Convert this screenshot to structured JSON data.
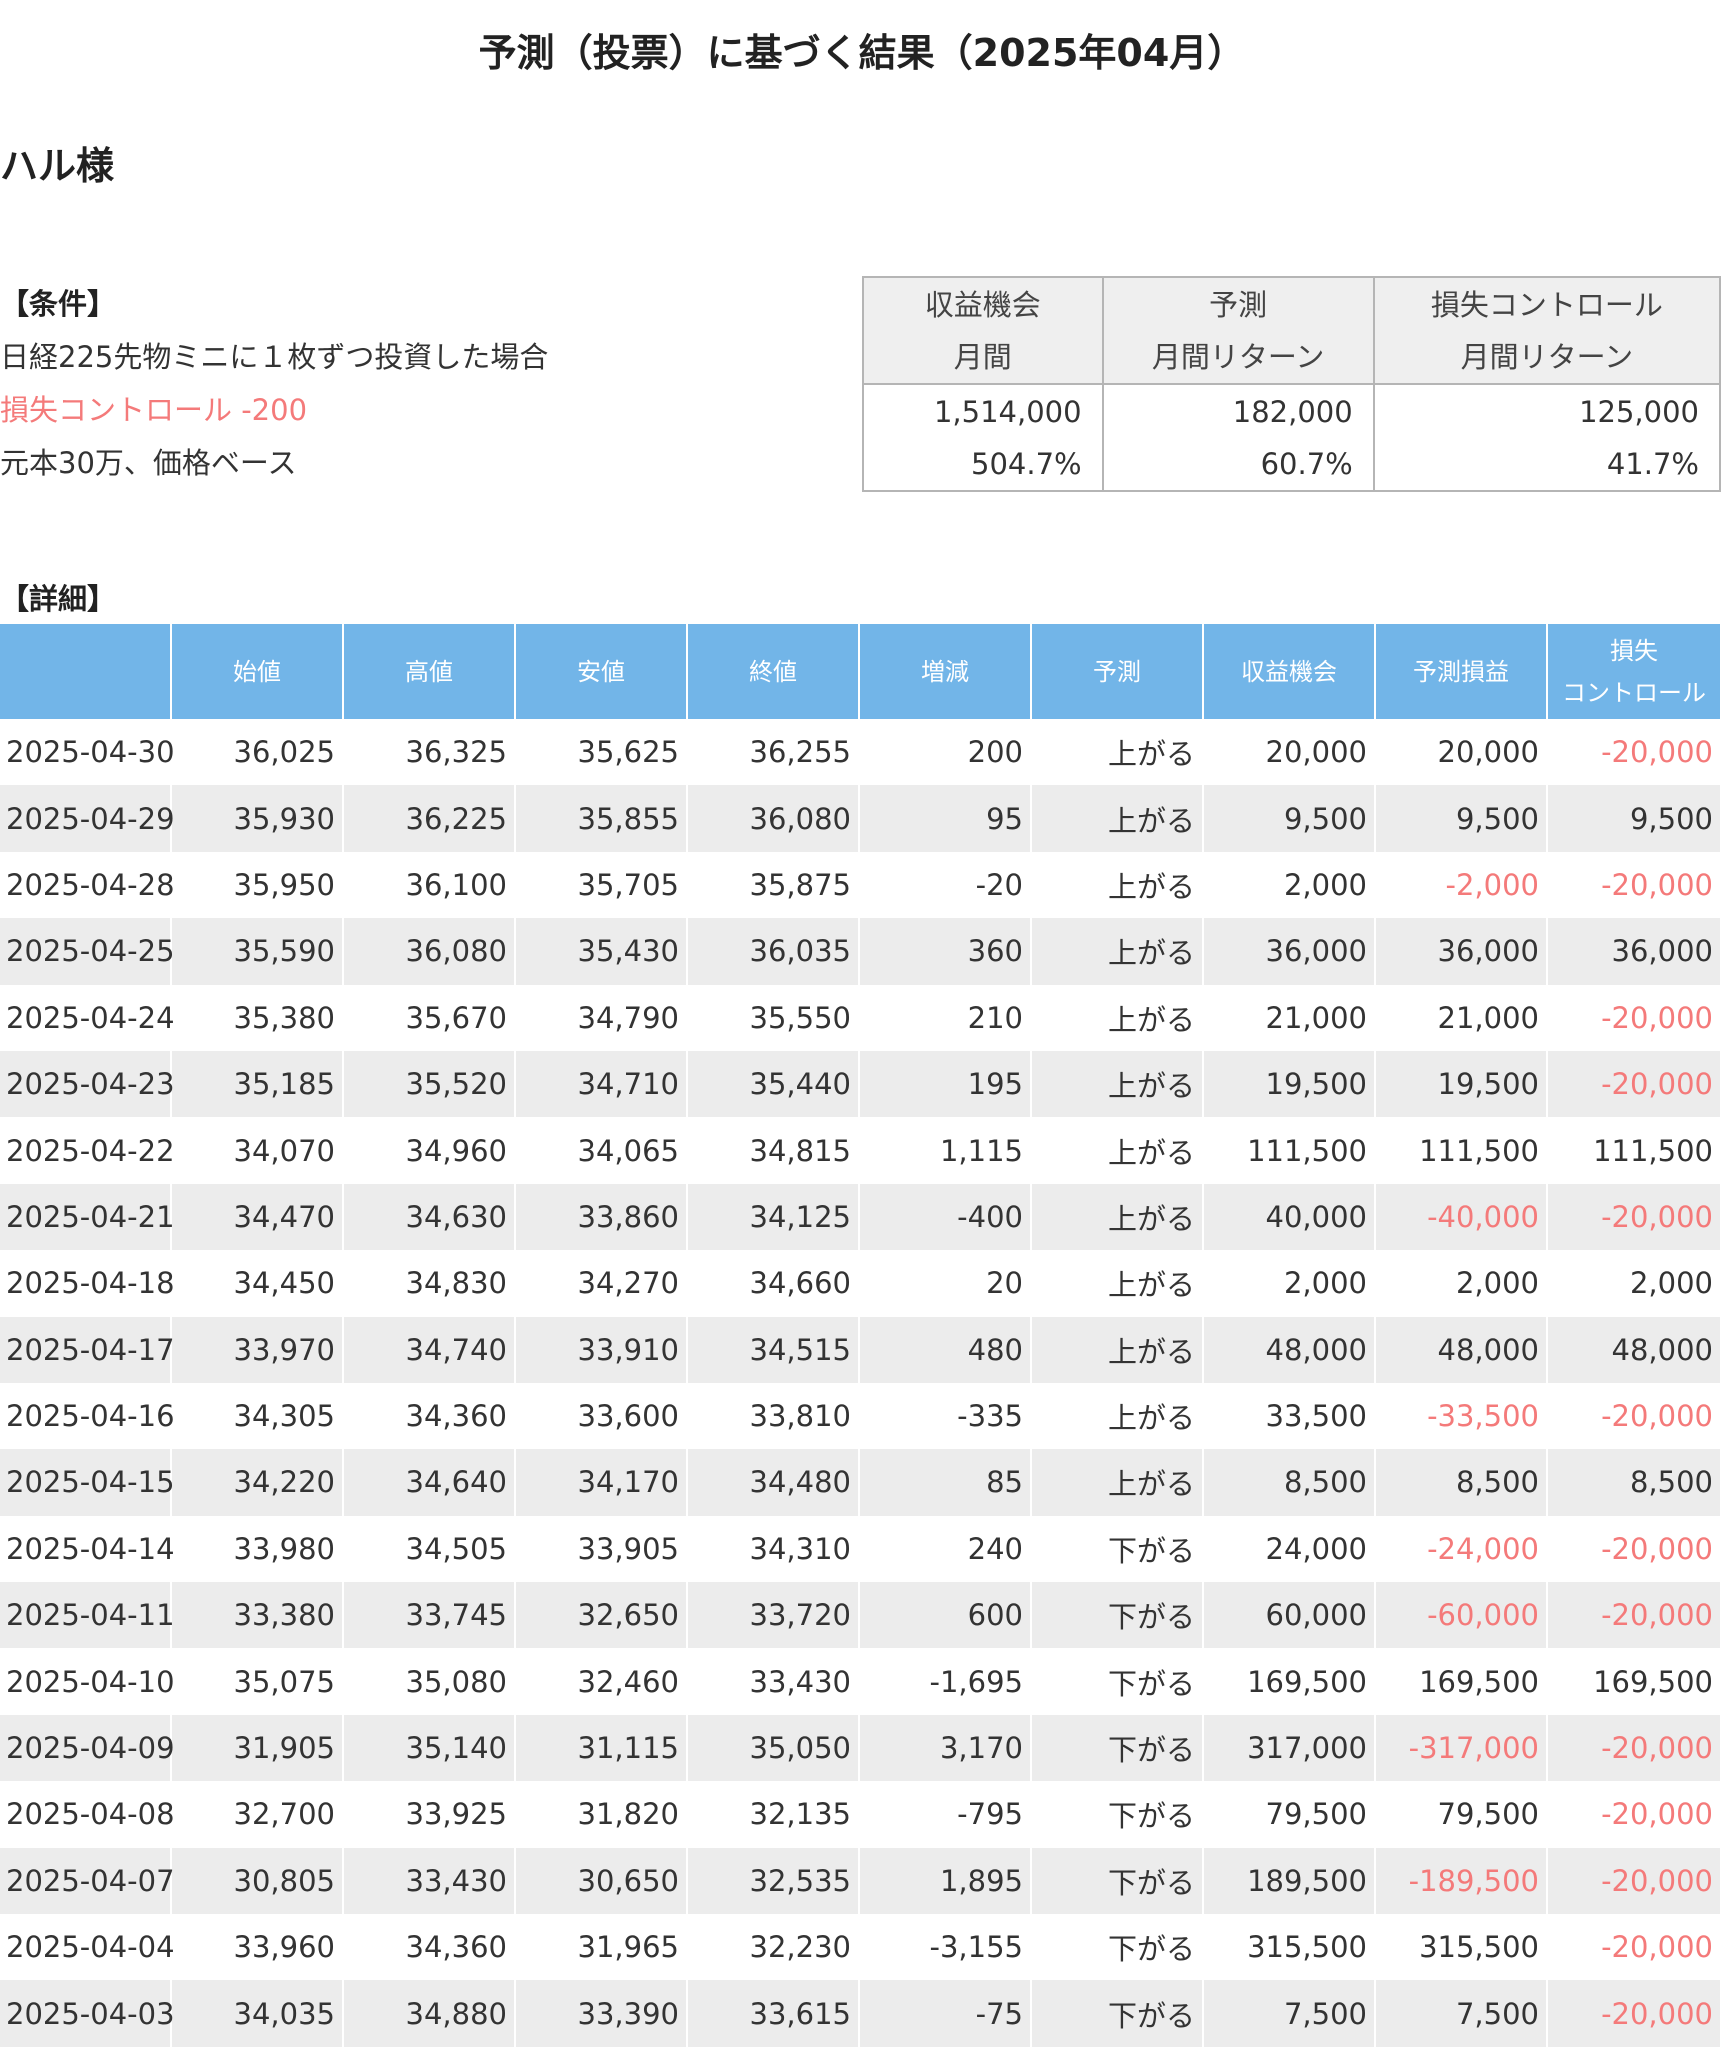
{
  "title": "予測（投票）に基づく結果（2025年04月）",
  "user": "ハル様",
  "conditions": {
    "heading": "【条件】",
    "line1": "日経225先物ミニに１枚ずつ投資した場合",
    "line2": "損失コントロール -200",
    "line3": "元本30万、価格ベース"
  },
  "summary": {
    "headers": [
      [
        "収益機会",
        "月間"
      ],
      [
        "予測",
        "月間リターン"
      ],
      [
        "損失コントロール",
        "月間リターン"
      ]
    ],
    "amounts": [
      "1,514,000",
      "182,000",
      "125,000"
    ],
    "percents": [
      "504.7%",
      "60.7%",
      "41.7%"
    ]
  },
  "detail": {
    "heading": "【詳細】",
    "columns": [
      "",
      "始値",
      "高値",
      "安値",
      "終値",
      "増減",
      "予測",
      "収益機会",
      "予測損益",
      "損失\nコントロール"
    ],
    "rows": [
      [
        "2025-04-30",
        "36,025",
        "36,325",
        "35,625",
        "36,255",
        "200",
        "上がる",
        "20,000",
        "20,000",
        "-20,000"
      ],
      [
        "2025-04-29",
        "35,930",
        "36,225",
        "35,855",
        "36,080",
        "95",
        "上がる",
        "9,500",
        "9,500",
        "9,500"
      ],
      [
        "2025-04-28",
        "35,950",
        "36,100",
        "35,705",
        "35,875",
        "-20",
        "上がる",
        "2,000",
        "-2,000",
        "-20,000"
      ],
      [
        "2025-04-25",
        "35,590",
        "36,080",
        "35,430",
        "36,035",
        "360",
        "上がる",
        "36,000",
        "36,000",
        "36,000"
      ],
      [
        "2025-04-24",
        "35,380",
        "35,670",
        "34,790",
        "35,550",
        "210",
        "上がる",
        "21,000",
        "21,000",
        "-20,000"
      ],
      [
        "2025-04-23",
        "35,185",
        "35,520",
        "34,710",
        "35,440",
        "195",
        "上がる",
        "19,500",
        "19,500",
        "-20,000"
      ],
      [
        "2025-04-22",
        "34,070",
        "34,960",
        "34,065",
        "34,815",
        "1,115",
        "上がる",
        "111,500",
        "111,500",
        "111,500"
      ],
      [
        "2025-04-21",
        "34,470",
        "34,630",
        "33,860",
        "34,125",
        "-400",
        "上がる",
        "40,000",
        "-40,000",
        "-20,000"
      ],
      [
        "2025-04-18",
        "34,450",
        "34,830",
        "34,270",
        "34,660",
        "20",
        "上がる",
        "2,000",
        "2,000",
        "2,000"
      ],
      [
        "2025-04-17",
        "33,970",
        "34,740",
        "33,910",
        "34,515",
        "480",
        "上がる",
        "48,000",
        "48,000",
        "48,000"
      ],
      [
        "2025-04-16",
        "34,305",
        "34,360",
        "33,600",
        "33,810",
        "-335",
        "上がる",
        "33,500",
        "-33,500",
        "-20,000"
      ],
      [
        "2025-04-15",
        "34,220",
        "34,640",
        "34,170",
        "34,480",
        "85",
        "上がる",
        "8,500",
        "8,500",
        "8,500"
      ],
      [
        "2025-04-14",
        "33,980",
        "34,505",
        "33,905",
        "34,310",
        "240",
        "下がる",
        "24,000",
        "-24,000",
        "-20,000"
      ],
      [
        "2025-04-11",
        "33,380",
        "33,745",
        "32,650",
        "33,720",
        "600",
        "下がる",
        "60,000",
        "-60,000",
        "-20,000"
      ],
      [
        "2025-04-10",
        "35,075",
        "35,080",
        "32,460",
        "33,430",
        "-1,695",
        "下がる",
        "169,500",
        "169,500",
        "169,500"
      ],
      [
        "2025-04-09",
        "31,905",
        "35,140",
        "31,115",
        "35,050",
        "3,170",
        "下がる",
        "317,000",
        "-317,000",
        "-20,000"
      ],
      [
        "2025-04-08",
        "32,700",
        "33,925",
        "31,820",
        "32,135",
        "-795",
        "下がる",
        "79,500",
        "79,500",
        "-20,000"
      ],
      [
        "2025-04-07",
        "30,805",
        "33,430",
        "30,650",
        "32,535",
        "1,895",
        "下がる",
        "189,500",
        "-189,500",
        "-20,000"
      ],
      [
        "2025-04-04",
        "33,960",
        "34,360",
        "31,965",
        "32,230",
        "-3,155",
        "下がる",
        "315,500",
        "315,500",
        "-20,000"
      ],
      [
        "2025-04-03",
        "34,035",
        "34,880",
        "33,390",
        "33,615",
        "-75",
        "下がる",
        "7,500",
        "7,500",
        "-20,000"
      ]
    ]
  },
  "colors": {
    "header_blue": "#72b5e8",
    "negative_red": "#f47a7a",
    "stripe_gray": "#ececec"
  }
}
